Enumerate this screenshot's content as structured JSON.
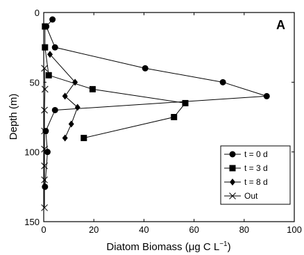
{
  "chart_data": {
    "type": "line",
    "panel_label": "A",
    "xlabel": "Diatom Biomass (μg C L",
    "xlabel_sup": "−1",
    "xlabel_end": ")",
    "ylabel": "Depth (m)",
    "xlim": [
      0,
      100
    ],
    "ylim": [
      0,
      150
    ],
    "y_inverted": true,
    "xticks": [
      0,
      20,
      40,
      60,
      80,
      100
    ],
    "yticks": [
      0,
      50,
      100,
      150
    ],
    "legend_position": "bottom-right",
    "series": [
      {
        "name": "t = 0 d",
        "marker": "circle",
        "points": [
          [
            3.5,
            5
          ],
          [
            1,
            10
          ],
          [
            4.5,
            25
          ],
          [
            40.5,
            40
          ],
          [
            71.5,
            50
          ],
          [
            89,
            60
          ],
          [
            4.5,
            70
          ],
          [
            0.8,
            85
          ],
          [
            1.5,
            100
          ],
          [
            0.5,
            125
          ]
        ]
      },
      {
        "name": "t = 3 d",
        "marker": "square",
        "points": [
          [
            0.5,
            10
          ],
          [
            0.5,
            25
          ],
          [
            2,
            45
          ],
          [
            19.5,
            55
          ],
          [
            56.5,
            65
          ],
          [
            52,
            75
          ],
          [
            16,
            90
          ]
        ]
      },
      {
        "name": "t = 8 d",
        "marker": "diamond",
        "points": [
          [
            2.5,
            30
          ],
          [
            12.5,
            50
          ],
          [
            8.5,
            60
          ],
          [
            13.5,
            68
          ],
          [
            11,
            80
          ],
          [
            8.5,
            90
          ]
        ]
      },
      {
        "name": "Out",
        "marker": "x",
        "points": [
          [
            0.3,
            40
          ],
          [
            0.5,
            55
          ],
          [
            0.3,
            70
          ],
          [
            0.3,
            85
          ],
          [
            0.3,
            98
          ],
          [
            0.3,
            110
          ],
          [
            0.3,
            120
          ],
          [
            0.3,
            140
          ]
        ]
      }
    ]
  }
}
